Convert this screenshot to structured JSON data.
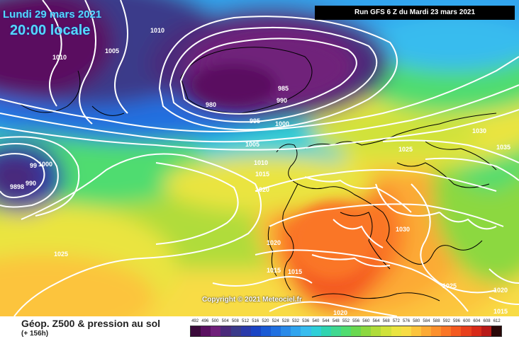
{
  "header": {
    "date": "Lundi 29 mars 2021",
    "time": "20:00 locale",
    "run": "Run GFS 6 Z du Mardi 23 mars 2021"
  },
  "copyright": "Copyright © 2021 Meteociel.fr",
  "footer": {
    "title": "Géop. Z500 & pression au sol",
    "lead_time": "(+ 156h)"
  },
  "scale": {
    "values": [
      "492",
      "496",
      "500",
      "504",
      "508",
      "512",
      "516",
      "520",
      "524",
      "528",
      "532",
      "536",
      "540",
      "544",
      "548",
      "552",
      "556",
      "560",
      "564",
      "568",
      "572",
      "576",
      "580",
      "584",
      "588",
      "592",
      "596",
      "600",
      "604",
      "608",
      "612"
    ],
    "colors": [
      "#3a0a3a",
      "#5a1060",
      "#70207a",
      "#4a2a7a",
      "#3a3a8a",
      "#2a3aaa",
      "#1a44c4",
      "#1a5ad4",
      "#2070e0",
      "#2a8ae8",
      "#30a4ee",
      "#38bcee",
      "#2fcfd8",
      "#30d4b0",
      "#40d890",
      "#50dc70",
      "#6ad850",
      "#8cd840",
      "#b0dc3a",
      "#d0e23a",
      "#eae440",
      "#f8dc44",
      "#fcc43c",
      "#fcaa34",
      "#fc902c",
      "#fa7626",
      "#f45a20",
      "#e8401c",
      "#d82a18",
      "#b81a18",
      "#2a0808"
    ]
  },
  "isobars": [
    {
      "value": "1010",
      "label_slot": 0
    },
    {
      "value": "1005",
      "label_slot": 1
    },
    {
      "value": "1010",
      "label_slot": 2
    },
    {
      "value": "985",
      "label_slot": 3
    },
    {
      "value": "990",
      "label_slot": 4
    },
    {
      "value": "980",
      "label_slot": 5
    },
    {
      "value": "995",
      "label_slot": 6
    },
    {
      "value": "1000",
      "label_slot": 7
    },
    {
      "value": "1005",
      "label_slot": 8
    },
    {
      "value": "1010",
      "label_slot": 9
    },
    {
      "value": "1015",
      "label_slot": 10
    },
    {
      "value": "1020",
      "label_slot": 11
    },
    {
      "value": "99",
      "label_slot": 12
    },
    {
      "value": "1000",
      "label_slot": 13
    },
    {
      "value": "990",
      "label_slot": 14
    },
    {
      "value": "9898",
      "label_slot": 15
    },
    {
      "value": "1025",
      "label_slot": 16
    },
    {
      "value": "1030",
      "label_slot": 17
    },
    {
      "value": "1035",
      "label_slot": 18
    },
    {
      "value": "1025",
      "label_slot": 19
    },
    {
      "value": "1030",
      "label_slot": 20
    },
    {
      "value": "1020",
      "label_slot": 21
    },
    {
      "value": "1015",
      "label_slot": 22
    },
    {
      "value": "1015",
      "label_slot": 23
    },
    {
      "value": "1025",
      "label_slot": 24
    },
    {
      "value": "1020",
      "label_slot": 25
    },
    {
      "value": "1015",
      "label_slot": 26
    },
    {
      "value": "1020",
      "label_slot": 27
    }
  ]
}
